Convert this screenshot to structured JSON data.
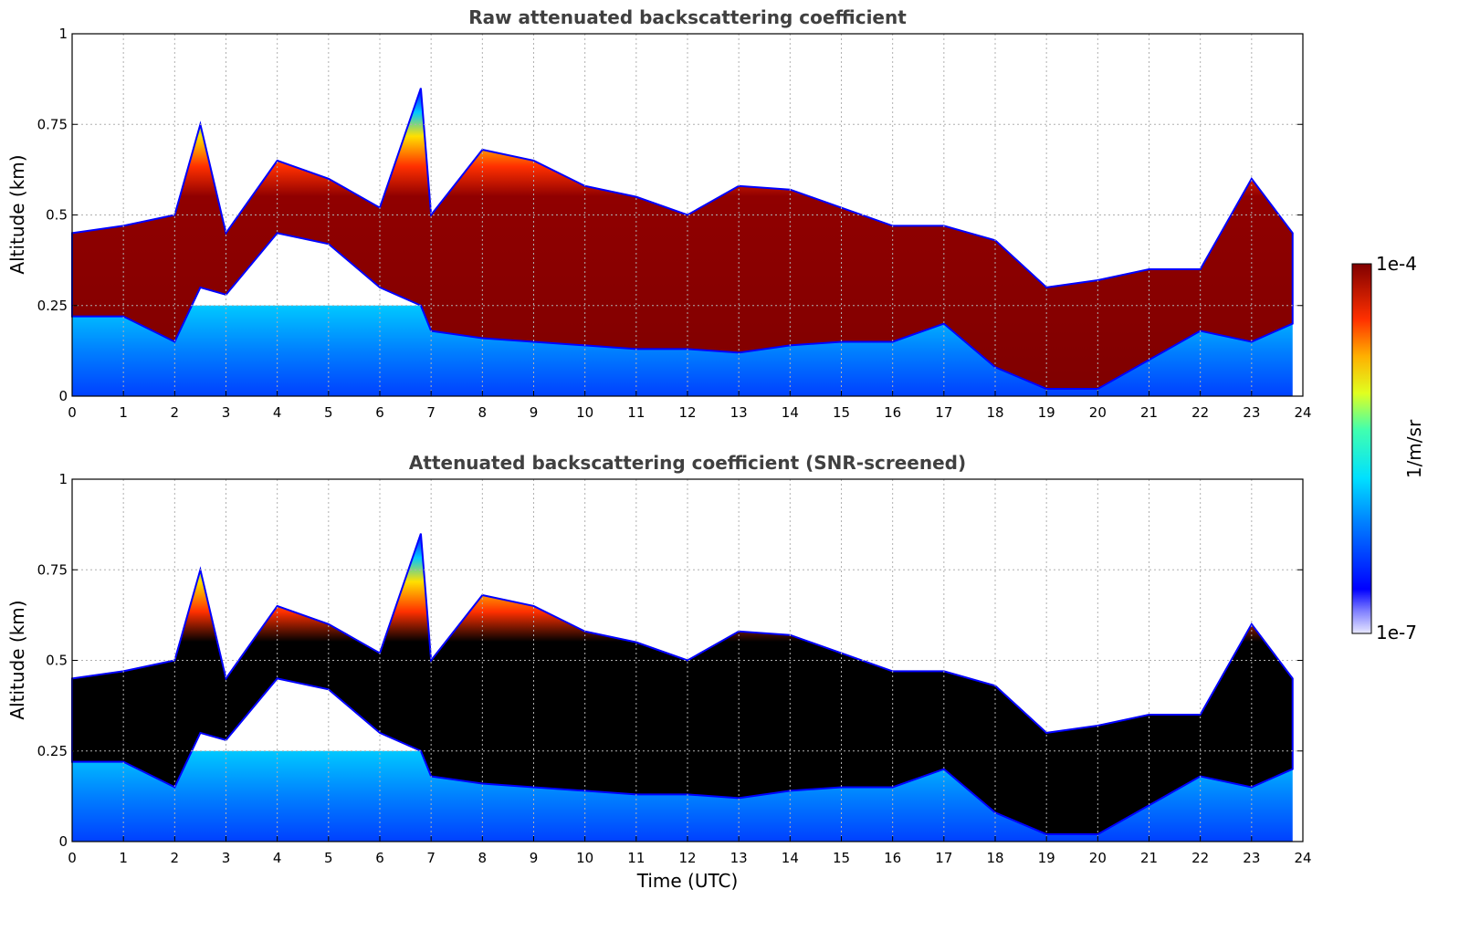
{
  "chart_data": [
    {
      "type": "heatmap",
      "title": "Raw attenuated backscattering coefficient",
      "xlabel": "",
      "ylabel": "Altitude (km)",
      "xlim": [
        0,
        24
      ],
      "ylim": [
        0,
        1
      ],
      "x_ticks": [
        "0",
        "1",
        "2",
        "3",
        "4",
        "5",
        "6",
        "7",
        "8",
        "9",
        "10",
        "11",
        "12",
        "13",
        "14",
        "15",
        "16",
        "17",
        "18",
        "19",
        "20",
        "21",
        "22",
        "23",
        "24"
      ],
      "y_ticks": [
        "0",
        "0.25",
        "0.5",
        "0.75",
        "1"
      ],
      "grid": true,
      "saturated_color": "#800000",
      "layers": {
        "time_utc": [
          0,
          1,
          2,
          2.5,
          3,
          4,
          5,
          6,
          6.8,
          7,
          8,
          9,
          10,
          11,
          12,
          13,
          14,
          15,
          16,
          17,
          18,
          19,
          20,
          21,
          22,
          23,
          23.8
        ],
        "aerosol_layer_top_km": [
          0.45,
          0.47,
          0.5,
          0.75,
          0.45,
          0.65,
          0.6,
          0.52,
          0.85,
          0.5,
          0.68,
          0.65,
          0.58,
          0.55,
          0.5,
          0.58,
          0.57,
          0.52,
          0.47,
          0.47,
          0.43,
          0.3,
          0.32,
          0.35,
          0.35,
          0.6,
          0.45
        ],
        "aerosol_layer_base_km": [
          0.22,
          0.22,
          0.15,
          0.3,
          0.28,
          0.45,
          0.42,
          0.3,
          0.25,
          0.18,
          0.16,
          0.15,
          0.14,
          0.13,
          0.13,
          0.12,
          0.14,
          0.15,
          0.15,
          0.2,
          0.08,
          0.02,
          0.02,
          0.1,
          0.18,
          0.15,
          0.2
        ]
      }
    },
    {
      "type": "heatmap",
      "title": "Attenuated backscattering coefficient (SNR-screened)",
      "xlabel": "Time (UTC)",
      "ylabel": "Altitude (km)",
      "xlim": [
        0,
        24
      ],
      "ylim": [
        0,
        1
      ],
      "x_ticks": [
        "0",
        "1",
        "2",
        "3",
        "4",
        "5",
        "6",
        "7",
        "8",
        "9",
        "10",
        "11",
        "12",
        "13",
        "14",
        "15",
        "16",
        "17",
        "18",
        "19",
        "20",
        "21",
        "22",
        "23",
        "24"
      ],
      "y_ticks": [
        "0",
        "0.25",
        "0.5",
        "0.75",
        "1"
      ],
      "grid": true,
      "saturated_color": "#000000"
    }
  ],
  "colorbar": {
    "label": "1/m/sr",
    "max_label": "1e-4",
    "min_label": "1e-7",
    "colormap": "jet",
    "scale": "log"
  }
}
